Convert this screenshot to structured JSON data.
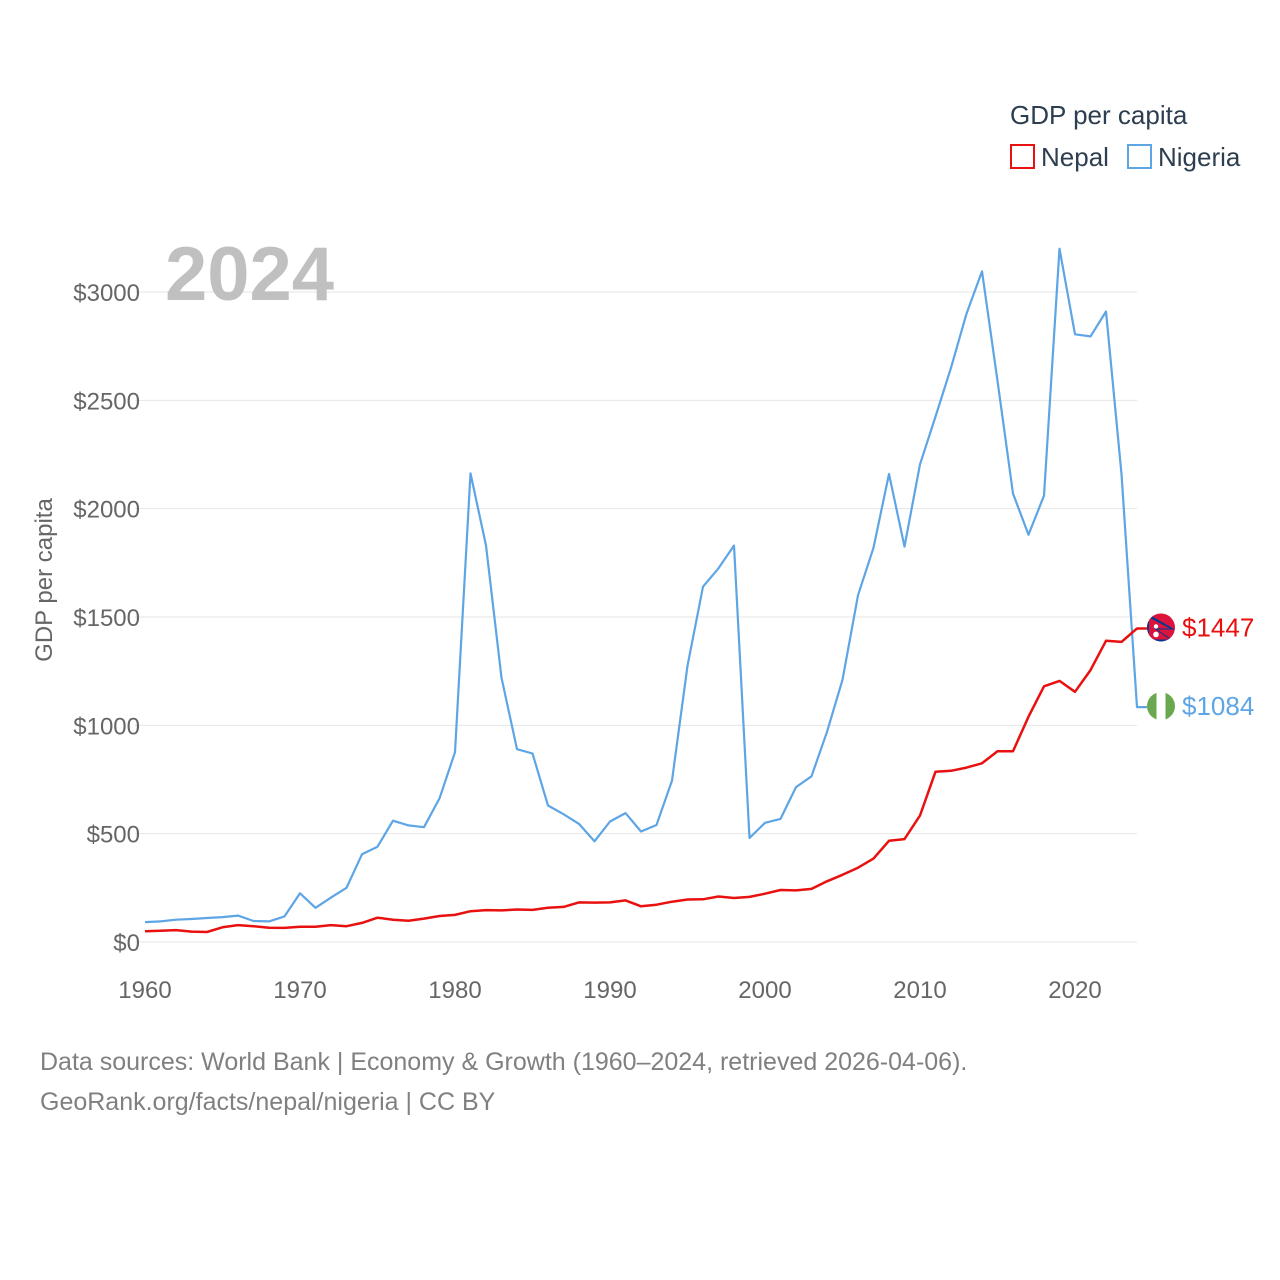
{
  "chart_data": {
    "type": "line",
    "year_label": "2024",
    "ylabel": "GDP per capita",
    "ylim": [
      0,
      3200
    ],
    "xlim": [
      1960,
      2024
    ],
    "yticks": [
      {
        "value": 0,
        "label": "$0"
      },
      {
        "value": 500,
        "label": "$500"
      },
      {
        "value": 1000,
        "label": "$1000"
      },
      {
        "value": 1500,
        "label": "$1500"
      },
      {
        "value": 2000,
        "label": "$2000"
      },
      {
        "value": 2500,
        "label": "$2500"
      },
      {
        "value": 3000,
        "label": "$3000"
      }
    ],
    "xticks": [
      {
        "value": 1960,
        "label": "1960"
      },
      {
        "value": 1970,
        "label": "1970"
      },
      {
        "value": 1980,
        "label": "1980"
      },
      {
        "value": 1990,
        "label": "1990"
      },
      {
        "value": 2000,
        "label": "2000"
      },
      {
        "value": 2010,
        "label": "2010"
      },
      {
        "value": 2020,
        "label": "2020"
      }
    ],
    "legend": {
      "title": "GDP per capita",
      "placement": "top-right"
    },
    "x": [
      1960,
      1961,
      1962,
      1963,
      1964,
      1965,
      1966,
      1967,
      1968,
      1969,
      1970,
      1971,
      1972,
      1973,
      1974,
      1975,
      1976,
      1977,
      1978,
      1979,
      1980,
      1981,
      1982,
      1983,
      1984,
      1985,
      1986,
      1987,
      1988,
      1989,
      1990,
      1991,
      1992,
      1993,
      1994,
      1995,
      1996,
      1997,
      1998,
      1999,
      2000,
      2001,
      2002,
      2003,
      2004,
      2005,
      2006,
      2007,
      2008,
      2009,
      2010,
      2011,
      2012,
      2013,
      2014,
      2015,
      2016,
      2017,
      2018,
      2019,
      2020,
      2021,
      2022,
      2023,
      2024
    ],
    "series": [
      {
        "name": "Nepal",
        "color": "#e8110f",
        "end_label": "$1447",
        "flag": "nepal-flag",
        "values": [
          50,
          52,
          55,
          48,
          46,
          68,
          78,
          73,
          66,
          65,
          70,
          70,
          78,
          73,
          88,
          112,
          103,
          98,
          108,
          120,
          125,
          142,
          147,
          146,
          150,
          148,
          158,
          162,
          183,
          182,
          183,
          192,
          165,
          172,
          186,
          196,
          197,
          210,
          203,
          208,
          223,
          240,
          238,
          245,
          280,
          310,
          343,
          385,
          467,
          475,
          584,
          786,
          790,
          805,
          825,
          880,
          880,
          1040,
          1180,
          1205,
          1155,
          1255,
          1390,
          1385,
          1447
        ]
      },
      {
        "name": "Nigeria",
        "color": "#5da5e5",
        "end_label": "$1084",
        "flag": "nigeria-flag",
        "values": [
          92,
          95,
          103,
          106,
          111,
          115,
          122,
          97,
          95,
          118,
          225,
          158,
          205,
          250,
          405,
          440,
          560,
          538,
          530,
          663,
          876,
          2163,
          1830,
          1220,
          890,
          870,
          630,
          590,
          545,
          465,
          556,
          595,
          510,
          540,
          745,
          1275,
          1640,
          1725,
          1830,
          480,
          550,
          568,
          715,
          765,
          970,
          1210,
          1600,
          1820,
          2160,
          1825,
          2205,
          2425,
          2650,
          2900,
          3095,
          2590,
          2070,
          1880,
          2060,
          3200,
          2805,
          2795,
          2910,
          2160,
          1084
        ]
      }
    ]
  },
  "source": {
    "line1": "Data sources: World Bank | Economy & Growth (1960–2024, retrieved 2026-04-06).",
    "line2": "GeoRank.org/facts/nepal/nigeria | CC BY"
  }
}
